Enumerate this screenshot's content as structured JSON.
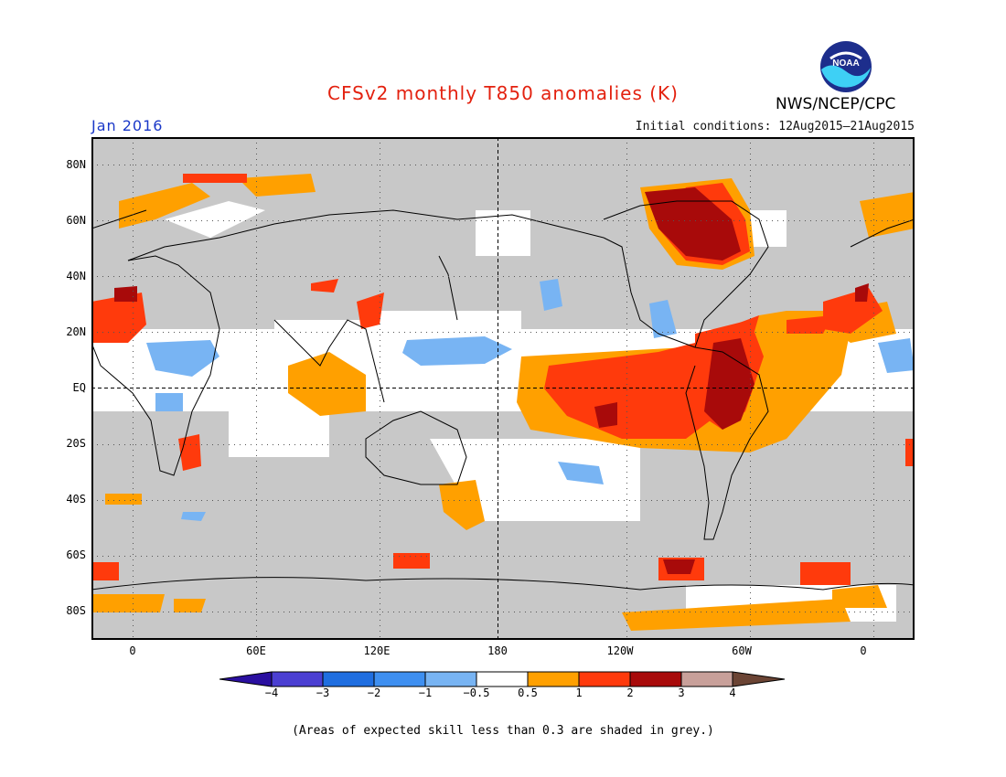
{
  "title": "CFSv2 monthly T850 anomalies (K)",
  "valid_month": "Jan 2016",
  "initial_conditions": "Initial conditions: 12Aug2015–21Aug2015",
  "organization": "NWS/NCEP/CPC",
  "logo_text": "NOAA",
  "colors": {
    "title": "#e3210f",
    "valid_month": "#1a38c8",
    "skill_grey": "#c8c8c8",
    "land_outline": "#000000"
  },
  "map": {
    "lat_labels": [
      "80N",
      "60N",
      "40N",
      "20N",
      "EQ",
      "20S",
      "40S",
      "60S",
      "80S"
    ],
    "lon_labels": [
      "0",
      "60E",
      "120E",
      "180",
      "120W",
      "60W",
      "0"
    ],
    "lat_values": [
      80,
      60,
      40,
      20,
      0,
      -20,
      -40,
      -60,
      -80
    ],
    "lon_values": [
      0,
      60,
      120,
      180,
      240,
      300,
      360
    ],
    "lon_range": [
      -20,
      380
    ],
    "lat_range": [
      -90,
      90
    ]
  },
  "colorbar": {
    "colors": [
      "#2a0fa0",
      "#4b3fd2",
      "#1f6ee0",
      "#3e8ff0",
      "#78b4f3",
      "#ffffff",
      "#ffa000",
      "#ff3a0c",
      "#a80a0a",
      "#c8a09a",
      "#6b4434"
    ],
    "labels": [
      "−4",
      "−3",
      "−2",
      "−1",
      "−0.5",
      "0.5",
      "1",
      "2",
      "3",
      "4"
    ]
  },
  "footer": "(Areas of expected skill less than 0.3 are shaded in grey.)"
}
